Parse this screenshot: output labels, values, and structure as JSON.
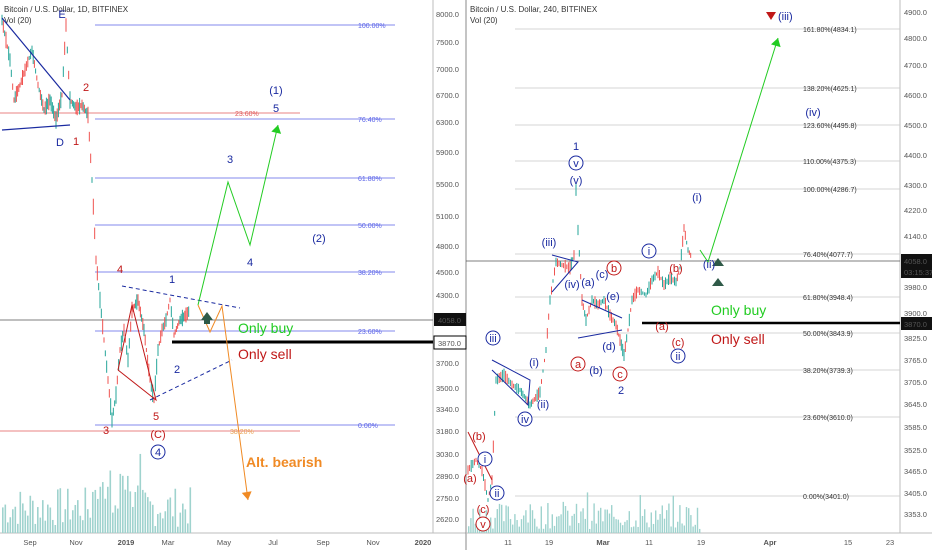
{
  "colors": {
    "wave_blue": "#1a2aa0",
    "wave_red": "#c01818",
    "green": "#22cc22",
    "orange": "#f08a24",
    "fib_blue": "#5a63e8",
    "fib_red": "#e05a5a",
    "candle_up": "#26a69a",
    "candle_down": "#ef5350",
    "volume": "#9fd3ce"
  },
  "left_chart": {
    "header": "Bitcoin / U.S. Dollar, 1D, BITFINEX",
    "vol_label": "Vol (20)",
    "x_ticks": [
      "Sep",
      "Nov",
      "2019",
      "Mar",
      "May",
      "Jul",
      "Sep",
      "Nov",
      "2020"
    ],
    "y_ticks": [
      "8000.0",
      "7500.0",
      "7000.0",
      "6700.0",
      "6300.0",
      "5900.0",
      "5500.0",
      "5100.0",
      "4800.0",
      "4500.0",
      "4300.0",
      "4058.0",
      "3870.0",
      "3700.0",
      "3500.0",
      "3340.0",
      "3180.0",
      "3030.0",
      "2890.0",
      "2750.0",
      "2620.0"
    ],
    "fib_levels": [
      "100.00%",
      "76.40%",
      "61.80%",
      "50.00%",
      "38.20%",
      "23.60%",
      "0.00%"
    ],
    "red_fib_levels": [
      "23.60%",
      "38.20%"
    ],
    "price_tags": [
      "4058.0",
      "3870.0"
    ],
    "wave_labels": [
      "E",
      "D",
      "2",
      "1",
      "4",
      "1",
      "3",
      "5",
      "(C)",
      "4",
      "2",
      "3",
      "4",
      "(1)",
      "5",
      "(2)"
    ],
    "notes": [
      "Only buy",
      "Only sell",
      "Alt. bearish"
    ]
  },
  "right_chart": {
    "header": "Bitcoin / U.S. Dollar, 240, BITFINEX",
    "vol_label": "Vol (20)",
    "x_ticks": [
      "11",
      "19",
      "Mar",
      "11",
      "19",
      "Apr",
      "15",
      "23"
    ],
    "y_ticks": [
      "4900.0",
      "4800.0",
      "4700.0",
      "4600.0",
      "4500.0",
      "4400.0",
      "4300.0",
      "4220.0",
      "4140.0",
      "4058.0",
      "03:15:37",
      "3980.0",
      "3900.0",
      "3870.0",
      "3825.0",
      "3765.0",
      "3705.0",
      "3645.0",
      "3585.0",
      "3525.0",
      "3465.0",
      "3405.0",
      "3353.0"
    ],
    "fib_levels": [
      "161.80%(4834.1)",
      "138.20%(4625.1)",
      "123.60%(4495.8)",
      "110.00%(4375.3)",
      "100.00%(4286.7)",
      "76.40%(4077.7)",
      "61.80%(3948.4)",
      "50.00%(3843.9)",
      "38.20%(3739.3)",
      "23.60%(3610.0)",
      "0.00%(3401.0)"
    ],
    "price_tags": [
      "4058.0",
      "03:15:37",
      "3870.0"
    ],
    "wave_labels": [
      "(iii)",
      "1",
      "v",
      "(v)",
      "(iii)",
      "(iv)",
      "(a)",
      "(c)",
      "b",
      "(e)",
      "(d)",
      "i",
      "(b)",
      "(i)",
      "(ii)",
      "(a)",
      "(c)",
      "ii",
      "(iv)",
      "(i)",
      "iii",
      "(i)",
      "(ii)",
      "iv",
      "(b)",
      "i",
      "ii",
      "a",
      "(c)",
      "(b)",
      "a",
      "2",
      "c",
      "(c)",
      "v"
    ],
    "notes": [
      "Only buy",
      "Only sell"
    ]
  }
}
